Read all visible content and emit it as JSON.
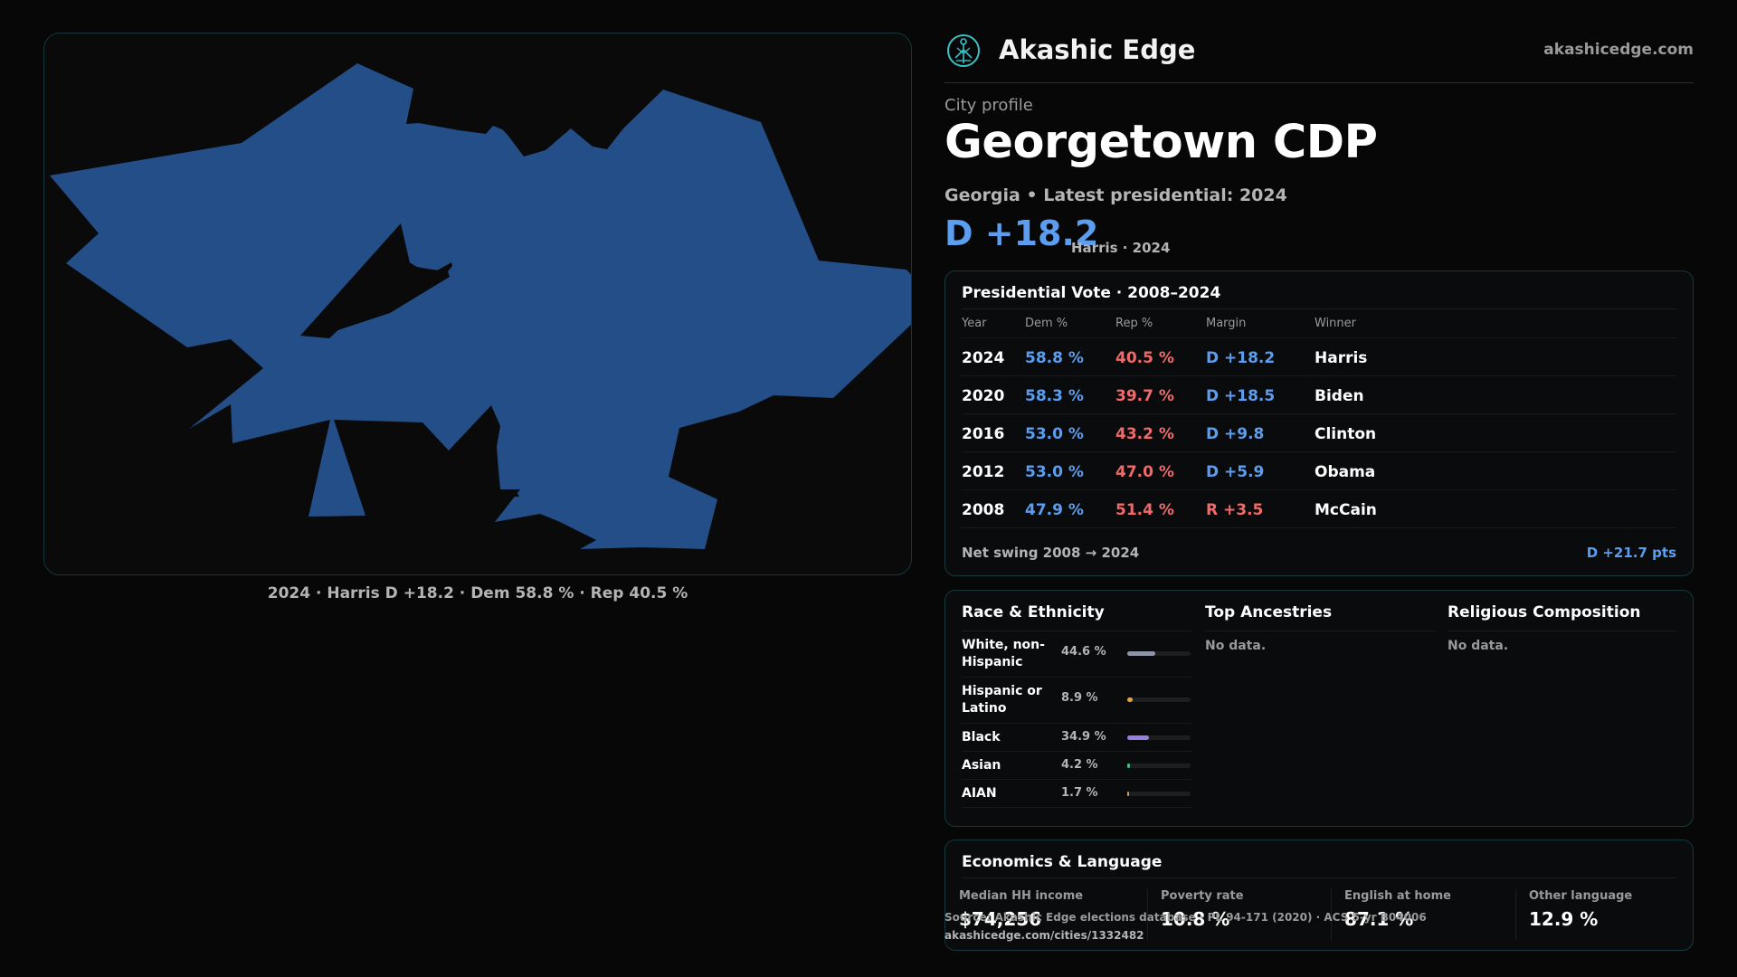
{
  "brand": {
    "name": "Akashic Edge",
    "url": "akashicedge.com",
    "logo_icon": "tree-of-life-icon",
    "accent": "#38c1c6"
  },
  "profile": {
    "eyebrow": "City profile",
    "title": "Georgetown CDP",
    "subline": "Georgia • Latest presidential: 2024",
    "margin": "D +18.2",
    "margin_note": "Harris · 2024"
  },
  "map": {
    "caption": "2024 · Harris D +18.2 · Dem 58.8 % · Rep 40.5 %",
    "fill_color": "#234e87"
  },
  "votes": {
    "title": "Presidential Vote · 2008–2024",
    "headers": {
      "year": "Year",
      "dem": "Dem %",
      "rep": "Rep %",
      "margin": "Margin",
      "winner": "Winner"
    },
    "rows": [
      {
        "year": "2024",
        "dem": "58.8 %",
        "rep": "40.5 %",
        "margin": "D +18.2",
        "winner": "Harris",
        "party": "D"
      },
      {
        "year": "2020",
        "dem": "58.3 %",
        "rep": "39.7 %",
        "margin": "D +18.5",
        "winner": "Biden",
        "party": "D"
      },
      {
        "year": "2016",
        "dem": "53.0 %",
        "rep": "43.2 %",
        "margin": "D +9.8",
        "winner": "Clinton",
        "party": "D"
      },
      {
        "year": "2012",
        "dem": "53.0 %",
        "rep": "47.0 %",
        "margin": "D +5.9",
        "winner": "Obama",
        "party": "D"
      },
      {
        "year": "2008",
        "dem": "47.9 %",
        "rep": "51.4 %",
        "margin": "R +3.5",
        "winner": "McCain",
        "party": "R"
      }
    ],
    "net_swing_label": "Net swing 2008 → 2024",
    "net_swing_value": "D +21.7 pts"
  },
  "demographics": {
    "race_title": "Race & Ethnicity",
    "race": [
      {
        "label": "White, non-Hispanic",
        "pct": "44.6 %",
        "value": 44.6,
        "color": "#8f95a8"
      },
      {
        "label": "Hispanic or Latino",
        "pct": "8.9 %",
        "value": 8.9,
        "color": "#e6a23c"
      },
      {
        "label": "Black",
        "pct": "34.9 %",
        "value": 34.9,
        "color": "#9a7fe0"
      },
      {
        "label": "Asian",
        "pct": "4.2 %",
        "value": 4.2,
        "color": "#3fbf7f"
      },
      {
        "label": "AIAN",
        "pct": "1.7 %",
        "value": 1.7,
        "color": "#c8a070"
      }
    ],
    "ancestries_title": "Top Ancestries",
    "ancestries_text": "No data.",
    "religion_title": "Religious Composition",
    "religion_text": "No data."
  },
  "economics": {
    "title": "Economics & Language",
    "stats": [
      {
        "label": "Median HH income",
        "value": "$74,256"
      },
      {
        "label": "Poverty rate",
        "value": "10.8 %"
      },
      {
        "label": "English at home",
        "value": "87.1 %"
      },
      {
        "label": "Other language",
        "value": "12.9 %"
      }
    ]
  },
  "footer": {
    "source": "Source: Akashic Edge elections database · PL 94-171 (2020) · ACS 5-yr B04006",
    "url": "akashicedge.com/cities/1332482"
  }
}
